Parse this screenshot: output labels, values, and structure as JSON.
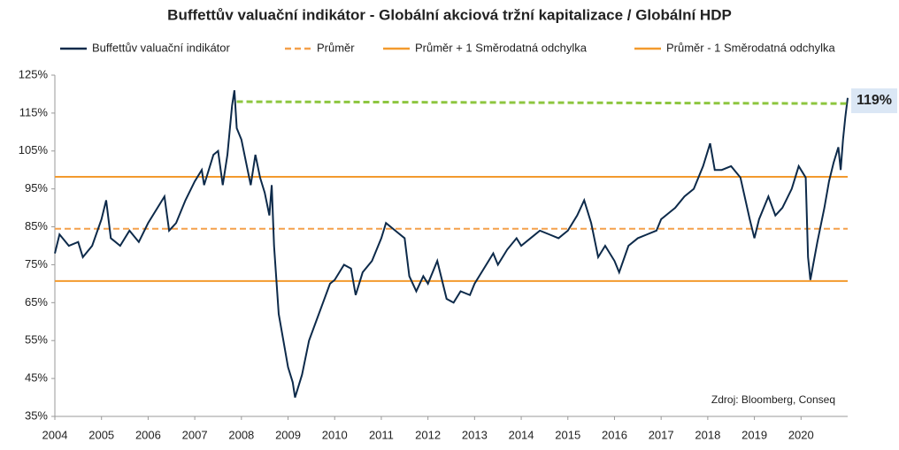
{
  "chart_data": {
    "type": "line",
    "title": "Buffettův valuační indikátor - Globální akciová tržní kapitalizace / Globální HDP",
    "xlim": [
      2004,
      2021
    ],
    "xticks": [
      2004,
      2005,
      2006,
      2007,
      2008,
      2009,
      2010,
      2011,
      2012,
      2013,
      2014,
      2015,
      2016,
      2017,
      2018,
      2019,
      2020
    ],
    "ylim": [
      35,
      125
    ],
    "yticks": [
      {
        "value": 35,
        "label": "35%"
      },
      {
        "value": 45,
        "label": "45%"
      },
      {
        "value": 55,
        "label": "55%"
      },
      {
        "value": 65,
        "label": "65%"
      },
      {
        "value": 75,
        "label": "75%"
      },
      {
        "value": 85,
        "label": "85%"
      },
      {
        "value": 95,
        "label": "95%"
      },
      {
        "value": 105,
        "label": "105%"
      },
      {
        "value": 115,
        "label": "115%"
      },
      {
        "value": 125,
        "label": "125%"
      }
    ],
    "grid": false,
    "legend": "top",
    "series": [
      {
        "name": "Buffettův valuační indikátor",
        "color": "#0d2a4a",
        "dash": false,
        "x": [
          2004.0,
          2004.1,
          2004.3,
          2004.5,
          2004.6,
          2004.8,
          2005.0,
          2005.1,
          2005.2,
          2005.4,
          2005.6,
          2005.8,
          2006.0,
          2006.2,
          2006.35,
          2006.45,
          2006.6,
          2006.8,
          2007.0,
          2007.15,
          2007.2,
          2007.4,
          2007.5,
          2007.6,
          2007.7,
          2007.8,
          2007.85,
          2007.9,
          2008.0,
          2008.1,
          2008.2,
          2008.3,
          2008.4,
          2008.5,
          2008.6,
          2008.65,
          2008.7,
          2008.8,
          2008.9,
          2009.0,
          2009.1,
          2009.15,
          2009.3,
          2009.45,
          2009.6,
          2009.75,
          2009.9,
          2010.0,
          2010.2,
          2010.35,
          2010.45,
          2010.6,
          2010.8,
          2011.0,
          2011.1,
          2011.3,
          2011.5,
          2011.6,
          2011.75,
          2011.9,
          2012.0,
          2012.2,
          2012.4,
          2012.55,
          2012.7,
          2012.9,
          2013.0,
          2013.2,
          2013.4,
          2013.5,
          2013.7,
          2013.9,
          2014.0,
          2014.2,
          2014.4,
          2014.6,
          2014.8,
          2015.0,
          2015.2,
          2015.35,
          2015.5,
          2015.65,
          2015.8,
          2016.0,
          2016.1,
          2016.3,
          2016.5,
          2016.7,
          2016.9,
          2017.0,
          2017.3,
          2017.5,
          2017.7,
          2017.9,
          2018.0,
          2018.05,
          2018.15,
          2018.3,
          2018.5,
          2018.7,
          2018.9,
          2019.0,
          2019.1,
          2019.3,
          2019.45,
          2019.6,
          2019.8,
          2019.95,
          2020.1,
          2020.15,
          2020.2,
          2020.35,
          2020.5,
          2020.6,
          2020.7,
          2020.8,
          2020.85,
          2020.9,
          2020.95,
          2021.0
        ],
        "values": [
          78,
          83,
          80,
          81,
          77,
          80,
          87,
          92,
          82,
          80,
          84,
          81,
          86,
          90,
          93,
          84,
          86,
          92,
          97,
          100,
          96,
          104,
          105,
          96,
          104,
          117,
          121,
          111,
          108,
          102,
          96,
          104,
          98,
          94,
          88,
          96,
          80,
          62,
          55,
          48,
          44,
          40,
          46,
          55,
          60,
          65,
          70,
          71,
          75,
          74,
          67,
          73,
          76,
          82,
          86,
          84,
          82,
          72,
          68,
          72,
          70,
          76,
          66,
          65,
          68,
          67,
          70,
          74,
          78,
          75,
          79,
          82,
          80,
          82,
          84,
          83,
          82,
          84,
          88,
          92,
          86,
          77,
          80,
          76,
          73,
          80,
          82,
          83,
          84,
          87,
          90,
          93,
          95,
          101,
          105,
          107,
          100,
          100,
          101,
          98,
          87,
          82,
          87,
          93,
          88,
          90,
          95,
          101,
          98,
          77,
          71,
          81,
          90,
          97,
          102,
          106,
          100,
          108,
          114,
          119
        ]
      },
      {
        "name": "Průměr",
        "color": "#f4a04a",
        "dash": true,
        "x": [
          2004,
          2021
        ],
        "values": [
          84.5,
          84.5
        ]
      },
      {
        "name": "Průměr + 1 Směrodatná odchylka",
        "color": "#f39a2d",
        "dash": false,
        "x": [
          2004,
          2021
        ],
        "values": [
          98.2,
          98.2
        ]
      },
      {
        "name": "Průměr - 1 Směrodatná odchylka",
        "color": "#f39a2d",
        "dash": false,
        "x": [
          2004,
          2021
        ],
        "values": [
          70.7,
          70.7
        ]
      }
    ],
    "reference_line": {
      "color": "#8dc63f",
      "x": [
        2007.9,
        2021
      ],
      "values": [
        118,
        117.5
      ]
    },
    "annotation": "119%",
    "source": "Zdroj: Bloomberg, Conseq"
  }
}
